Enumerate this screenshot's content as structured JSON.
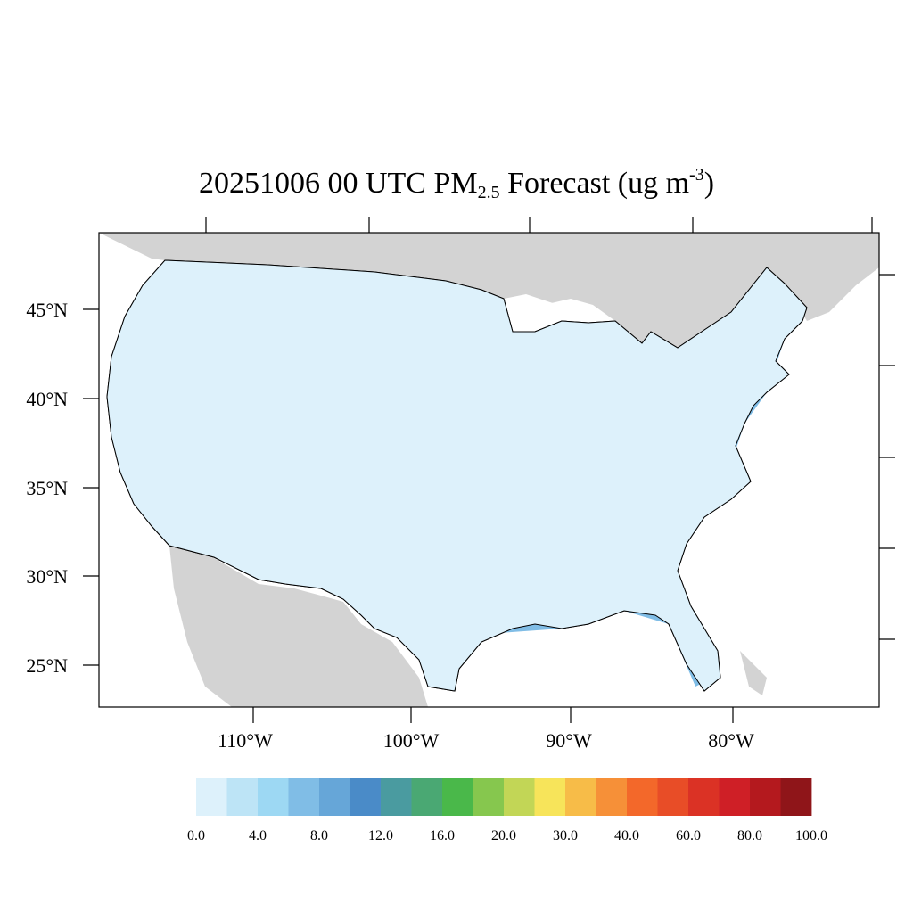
{
  "title": {
    "prefix": "20251006 00 UTC PM",
    "subscript": "2.5",
    "middle": " Forecast (ug m",
    "superscript": "-3",
    "suffix": ")"
  },
  "axes": {
    "lat_labels": [
      "45°N",
      "40°N",
      "35°N",
      "30°N",
      "25°N"
    ],
    "lon_labels": [
      "110°W",
      "100°W",
      "90°W",
      "80°W"
    ]
  },
  "colorbar": {
    "colors": [
      "#ddf1fb",
      "#bde4f6",
      "#9dd8f3",
      "#80bde6",
      "#66a6d8",
      "#4a8bc8",
      "#4a9ba0",
      "#4aa873",
      "#4ab84a",
      "#86c74e",
      "#c2d656",
      "#f7e45a",
      "#f7bc48",
      "#f69038",
      "#f3682a",
      "#e84d27",
      "#db3225",
      "#cf1f26",
      "#b4191e",
      "#8f1519"
    ],
    "labels": [
      "0.0",
      "4.0",
      "8.0",
      "12.0",
      "16.0",
      "20.0",
      "30.0",
      "40.0",
      "60.0",
      "80.0",
      "100.0"
    ]
  },
  "legend_colors": {
    "land_outside": "#d3d3d3",
    "water": "#ffffff"
  }
}
